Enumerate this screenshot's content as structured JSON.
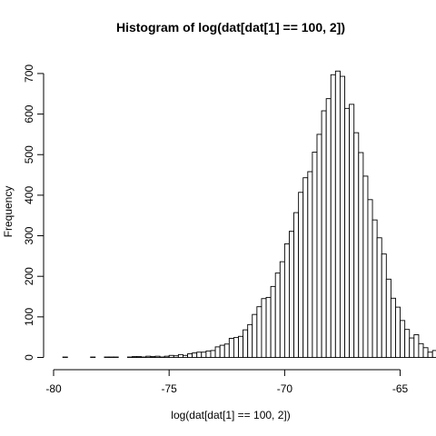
{
  "chart_data": {
    "type": "bar",
    "title": "Histogram of log(dat[dat[1] == 100, 2])",
    "xlabel": "log(dat[dat[1] == 100, 2])",
    "ylabel": "Frequency",
    "xlim": [
      -80,
      -64
    ],
    "ylim": [
      0,
      720
    ],
    "x_ticks": [
      -80,
      -75,
      -70,
      -65
    ],
    "y_ticks": [
      0,
      100,
      200,
      300,
      400,
      500,
      600,
      700
    ],
    "bin_width": 0.2,
    "bin_start": -79.6,
    "values": [
      1,
      0,
      0,
      0,
      0,
      0,
      1,
      0,
      0,
      1,
      1,
      1,
      0,
      0,
      1,
      2,
      2,
      1,
      3,
      2,
      3,
      1,
      3,
      5,
      4,
      7,
      5,
      9,
      11,
      13,
      13,
      16,
      17,
      26,
      30,
      33,
      47,
      49,
      52,
      68,
      81,
      106,
      125,
      145,
      148,
      175,
      208,
      236,
      280,
      311,
      357,
      407,
      443,
      458,
      506,
      550,
      608,
      638,
      697,
      706,
      693,
      614,
      624,
      554,
      505,
      447,
      389,
      339,
      295,
      255,
      193,
      146,
      124,
      91,
      69,
      48,
      56,
      34,
      24,
      13,
      17,
      6,
      3,
      1,
      5,
      0,
      3,
      2,
      1,
      0
    ],
    "grid": false,
    "legend": "none"
  }
}
